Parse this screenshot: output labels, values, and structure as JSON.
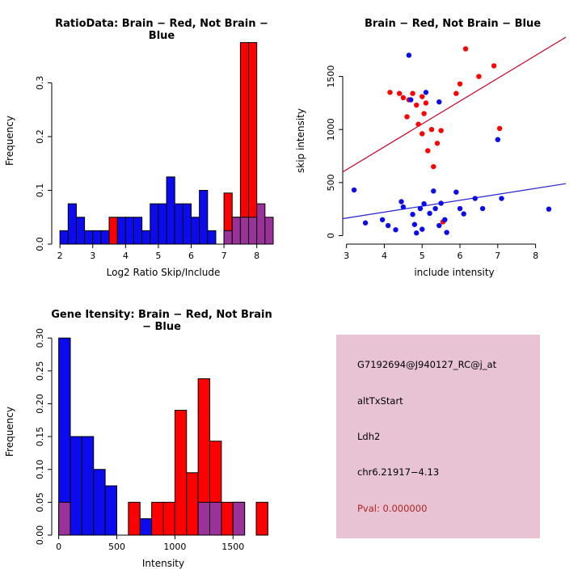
{
  "colors": {
    "red": "#ff0000",
    "blue": "#0b0bee",
    "purple": "#993299",
    "pval_red": "#b22222",
    "info_bg": "#e7c3d4"
  },
  "info_box": {
    "bg": "#e7c3d4",
    "lines": [
      {
        "text": "G7192694@J940127_RC@j_at",
        "color": "#000000"
      },
      {
        "text": "altTxStart",
        "color": "#000000"
      },
      {
        "text": "Ldh2",
        "color": "#000000"
      },
      {
        "text": "chr6.21917−4.13",
        "color": "#000000"
      },
      {
        "text": "Pval: 0.000000",
        "color": "#b22222"
      }
    ]
  },
  "chart_data": [
    {
      "type": "bar",
      "title": "RatioData: Brain − Red, Not Brain − Blue",
      "xlabel": "Log2 Ratio Skip/Include",
      "ylabel": "Frequency",
      "xlim": [
        1.75,
        8.55
      ],
      "ylim": [
        0,
        0.385
      ],
      "xticks": [
        2,
        3,
        4,
        5,
        6,
        7,
        8
      ],
      "yticks": [
        0.0,
        0.1,
        0.2,
        0.3
      ],
      "ytick_labels": [
        "0.0",
        "0.1",
        "0.2",
        "0.3"
      ],
      "grid": false,
      "legend": "none",
      "bin_width": 0.25,
      "series": [
        {
          "name": "not_brain_blue",
          "color": "#0b0bee",
          "bins": [
            [
              2.0,
              0.025
            ],
            [
              2.25,
              0.075
            ],
            [
              2.5,
              0.05
            ],
            [
              2.75,
              0.025
            ],
            [
              3.0,
              0.025
            ],
            [
              3.25,
              0.025
            ],
            [
              3.75,
              0.05
            ],
            [
              4.0,
              0.05
            ],
            [
              4.25,
              0.05
            ],
            [
              4.5,
              0.025
            ],
            [
              4.75,
              0.075
            ],
            [
              5.0,
              0.075
            ],
            [
              5.25,
              0.125
            ],
            [
              5.5,
              0.075
            ],
            [
              5.75,
              0.075
            ],
            [
              6.0,
              0.05
            ],
            [
              6.25,
              0.1
            ],
            [
              6.5,
              0.025
            ],
            [
              7.25,
              0.025
            ]
          ]
        },
        {
          "name": "brain_red",
          "color": "#ff0000",
          "bins": [
            [
              3.5,
              0.05
            ],
            [
              7.0,
              0.095
            ],
            [
              7.25,
              0.05
            ],
            [
              7.5,
              0.375
            ],
            [
              7.75,
              0.375
            ],
            [
              8.0,
              0.05
            ]
          ]
        },
        {
          "name": "overlap_purple",
          "color": "#993299",
          "bins": [
            [
              7.0,
              0.025
            ],
            [
              7.25,
              0.05
            ],
            [
              7.5,
              0.05
            ],
            [
              7.75,
              0.05
            ],
            [
              8.0,
              0.075
            ],
            [
              8.25,
              0.05
            ]
          ]
        }
      ]
    },
    {
      "type": "scatter",
      "title": "Brain − Red, Not Brain − Blue",
      "xlabel": "include intensity",
      "ylabel": "skip intensity",
      "xlim": [
        2.9,
        8.8
      ],
      "ylim": [
        -80,
        1870
      ],
      "xticks": [
        3,
        4,
        5,
        6,
        7,
        8
      ],
      "yticks": [
        0,
        500,
        1000,
        1500
      ],
      "ytick_labels": [
        "0",
        "500",
        "1000",
        "1500"
      ],
      "grid": false,
      "legend": "none",
      "series": [
        {
          "name": "brain_red",
          "color": "#ff0000",
          "points": [
            [
              4.15,
              1350
            ],
            [
              4.4,
              1340
            ],
            [
              4.5,
              1300
            ],
            [
              4.6,
              1120
            ],
            [
              4.65,
              1280
            ],
            [
              4.75,
              1340
            ],
            [
              4.85,
              1230
            ],
            [
              4.9,
              1050
            ],
            [
              5.0,
              1310
            ],
            [
              5.0,
              960
            ],
            [
              5.05,
              1150
            ],
            [
              5.1,
              1250
            ],
            [
              5.15,
              800
            ],
            [
              5.25,
              1000
            ],
            [
              5.3,
              650
            ],
            [
              5.4,
              870
            ],
            [
              5.5,
              990
            ],
            [
              5.55,
              130
            ],
            [
              5.9,
              1340
            ],
            [
              6.0,
              1430
            ],
            [
              6.15,
              1760
            ],
            [
              6.5,
              1500
            ],
            [
              6.9,
              1600
            ],
            [
              7.05,
              1010
            ]
          ]
        },
        {
          "name": "not_brain_blue",
          "color": "#0b0bee",
          "points": [
            [
              3.2,
              430
            ],
            [
              3.5,
              120
            ],
            [
              3.95,
              150
            ],
            [
              4.1,
              95
            ],
            [
              4.3,
              55
            ],
            [
              4.45,
              320
            ],
            [
              4.5,
              270
            ],
            [
              4.65,
              1700
            ],
            [
              4.7,
              1280
            ],
            [
              4.75,
              200
            ],
            [
              4.8,
              105
            ],
            [
              4.85,
              25
            ],
            [
              4.95,
              255
            ],
            [
              5.0,
              60
            ],
            [
              5.05,
              300
            ],
            [
              5.1,
              1350
            ],
            [
              5.2,
              210
            ],
            [
              5.3,
              420
            ],
            [
              5.35,
              255
            ],
            [
              5.45,
              1260
            ],
            [
              5.45,
              95
            ],
            [
              5.5,
              305
            ],
            [
              5.6,
              150
            ],
            [
              5.65,
              30
            ],
            [
              5.9,
              410
            ],
            [
              6.0,
              255
            ],
            [
              6.1,
              205
            ],
            [
              6.4,
              350
            ],
            [
              6.6,
              255
            ],
            [
              7.0,
              905
            ],
            [
              7.1,
              350
            ],
            [
              8.35,
              250
            ]
          ]
        }
      ],
      "lines": [
        {
          "name": "brain_fit",
          "color": "#cc0022",
          "x1": 2.9,
          "y1": 600,
          "x2": 8.8,
          "y2": 1870
        },
        {
          "name": "not_brain_fit",
          "color": "#2222cc",
          "x1": 2.9,
          "y1": 160,
          "x2": 8.8,
          "y2": 490
        }
      ]
    },
    {
      "type": "bar",
      "title": "Gene Itensity: Brain − Red, Not Brain − Blue",
      "xlabel": "Intensity",
      "ylabel": "Frequency",
      "xlim": [
        -60,
        1860
      ],
      "ylim": [
        0,
        0.315
      ],
      "xticks": [
        0,
        500,
        1000,
        1500
      ],
      "yticks": [
        0,
        0.05,
        0.1,
        0.15,
        0.2,
        0.25,
        0.3
      ],
      "ytick_labels": [
        "0.00",
        "0.05",
        "0.10",
        "0.15",
        "0.20",
        "0.25",
        "0.30"
      ],
      "grid": false,
      "legend": "none",
      "bin_width": 100,
      "series": [
        {
          "name": "not_brain_blue",
          "color": "#0b0bee",
          "bins": [
            [
              0,
              0.3
            ],
            [
              100,
              0.15
            ],
            [
              200,
              0.15
            ],
            [
              300,
              0.1
            ],
            [
              400,
              0.075
            ],
            [
              700,
              0.025
            ]
          ]
        },
        {
          "name": "brain_red",
          "color": "#ff0000",
          "bins": [
            [
              600,
              0.05
            ],
            [
              800,
              0.05
            ],
            [
              900,
              0.05
            ],
            [
              1000,
              0.19
            ],
            [
              1100,
              0.095
            ],
            [
              1200,
              0.238
            ],
            [
              1300,
              0.143
            ],
            [
              1400,
              0.05
            ],
            [
              1500,
              0.05
            ],
            [
              1700,
              0.05
            ]
          ]
        },
        {
          "name": "overlap_purple",
          "color": "#993299",
          "bins": [
            [
              0,
              0.05
            ],
            [
              1200,
              0.05
            ],
            [
              1300,
              0.05
            ],
            [
              1500,
              0.05
            ]
          ]
        }
      ]
    }
  ]
}
